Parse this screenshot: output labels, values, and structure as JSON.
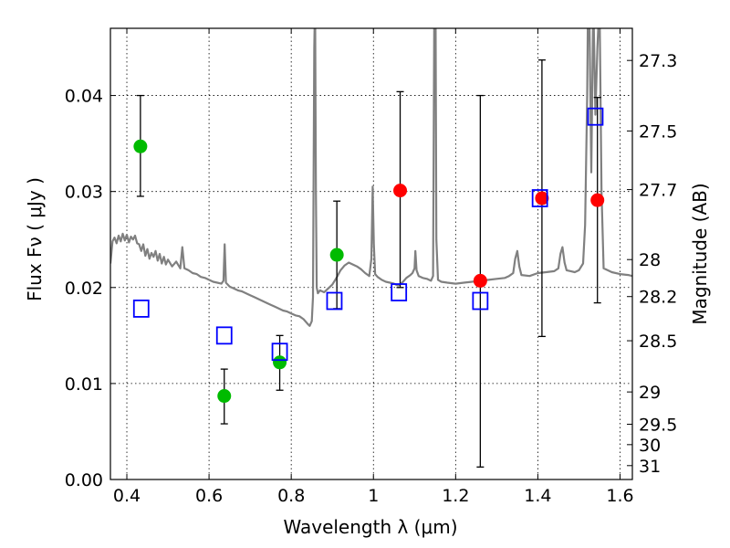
{
  "chart_data": {
    "type": "scatter",
    "xlabel": "Wavelength  λ (μm)",
    "ylabel_left": "Flux  Fν  ( μJy )",
    "ylabel_right": "Magnitude (AB)",
    "xlim": [
      0.36,
      1.63
    ],
    "ylim": [
      0.0,
      0.047
    ],
    "grid": true,
    "x_ticks": [
      {
        "value": 0.4,
        "label": "0.4"
      },
      {
        "value": 0.6,
        "label": "0.6"
      },
      {
        "value": 0.8,
        "label": "0.8"
      },
      {
        "value": 1.0,
        "label": "1"
      },
      {
        "value": 1.2,
        "label": "1.2"
      },
      {
        "value": 1.4,
        "label": "1.4"
      },
      {
        "value": 1.6,
        "label": "1.6"
      }
    ],
    "y_ticks": [
      {
        "value": 0.0,
        "label": "0.00"
      },
      {
        "value": 0.01,
        "label": "0.01"
      },
      {
        "value": 0.02,
        "label": "0.02"
      },
      {
        "value": 0.03,
        "label": "0.03"
      },
      {
        "value": 0.04,
        "label": "0.04"
      }
    ],
    "mag_ticks": [
      {
        "value": 27.3,
        "label": "27.3"
      },
      {
        "value": 27.5,
        "label": "27.5"
      },
      {
        "value": 27.7,
        "label": "27.7"
      },
      {
        "value": 28.0,
        "label": "28"
      },
      {
        "value": 28.2,
        "label": "28.2"
      },
      {
        "value": 28.5,
        "label": "28.5"
      },
      {
        "value": 29.0,
        "label": "29"
      },
      {
        "value": 29.5,
        "label": "29.5"
      },
      {
        "value": 30.0,
        "label": "30"
      },
      {
        "value": 31.0,
        "label": "31"
      }
    ],
    "series": [
      {
        "name": "model SED",
        "kind": "line",
        "color": "#808080",
        "points": [
          [
            0.36,
            0.0225
          ],
          [
            0.365,
            0.0248
          ],
          [
            0.37,
            0.0252
          ],
          [
            0.375,
            0.0246
          ],
          [
            0.38,
            0.0254
          ],
          [
            0.385,
            0.0248
          ],
          [
            0.39,
            0.0256
          ],
          [
            0.395,
            0.0249
          ],
          [
            0.4,
            0.0255
          ],
          [
            0.405,
            0.0247
          ],
          [
            0.41,
            0.0253
          ],
          [
            0.415,
            0.025
          ],
          [
            0.42,
            0.0254
          ],
          [
            0.425,
            0.0246
          ],
          [
            0.43,
            0.0245
          ],
          [
            0.435,
            0.0238
          ],
          [
            0.44,
            0.0245
          ],
          [
            0.445,
            0.0233
          ],
          [
            0.45,
            0.024
          ],
          [
            0.455,
            0.023
          ],
          [
            0.46,
            0.0236
          ],
          [
            0.465,
            0.0232
          ],
          [
            0.47,
            0.0238
          ],
          [
            0.475,
            0.0228
          ],
          [
            0.48,
            0.0235
          ],
          [
            0.485,
            0.0225
          ],
          [
            0.49,
            0.0232
          ],
          [
            0.495,
            0.0224
          ],
          [
            0.5,
            0.0229
          ],
          [
            0.51,
            0.0222
          ],
          [
            0.52,
            0.0227
          ],
          [
            0.53,
            0.022
          ],
          [
            0.535,
            0.0242
          ],
          [
            0.54,
            0.022
          ],
          [
            0.55,
            0.0218
          ],
          [
            0.56,
            0.0215
          ],
          [
            0.57,
            0.0214
          ],
          [
            0.58,
            0.0211
          ],
          [
            0.59,
            0.021
          ],
          [
            0.6,
            0.0208
          ],
          [
            0.61,
            0.0206
          ],
          [
            0.62,
            0.0205
          ],
          [
            0.63,
            0.0204
          ],
          [
            0.635,
            0.0207
          ],
          [
            0.638,
            0.0245
          ],
          [
            0.641,
            0.0205
          ],
          [
            0.65,
            0.0201
          ],
          [
            0.66,
            0.0199
          ],
          [
            0.67,
            0.0197
          ],
          [
            0.68,
            0.0196
          ],
          [
            0.69,
            0.0194
          ],
          [
            0.7,
            0.0192
          ],
          [
            0.71,
            0.019
          ],
          [
            0.72,
            0.0188
          ],
          [
            0.73,
            0.0186
          ],
          [
            0.74,
            0.0184
          ],
          [
            0.75,
            0.0182
          ],
          [
            0.76,
            0.018
          ],
          [
            0.77,
            0.0178
          ],
          [
            0.78,
            0.0176
          ],
          [
            0.79,
            0.0175
          ],
          [
            0.8,
            0.0173
          ],
          [
            0.81,
            0.0171
          ],
          [
            0.82,
            0.017
          ],
          [
            0.83,
            0.0167
          ],
          [
            0.84,
            0.0162
          ],
          [
            0.845,
            0.016
          ],
          [
            0.85,
            0.0165
          ],
          [
            0.853,
            0.019
          ],
          [
            0.856,
            0.045
          ],
          [
            0.858,
            0.05
          ],
          [
            0.86,
            0.03
          ],
          [
            0.862,
            0.02
          ],
          [
            0.865,
            0.0194
          ],
          [
            0.87,
            0.0197
          ],
          [
            0.88,
            0.0195
          ],
          [
            0.89,
            0.0199
          ],
          [
            0.9,
            0.0203
          ],
          [
            0.91,
            0.021
          ],
          [
            0.92,
            0.0218
          ],
          [
            0.93,
            0.0223
          ],
          [
            0.94,
            0.0226
          ],
          [
            0.95,
            0.0224
          ],
          [
            0.96,
            0.0222
          ],
          [
            0.97,
            0.0219
          ],
          [
            0.98,
            0.0215
          ],
          [
            0.99,
            0.0212
          ],
          [
            0.995,
            0.023
          ],
          [
            0.998,
            0.0305
          ],
          [
            1.001,
            0.0245
          ],
          [
            1.004,
            0.0214
          ],
          [
            1.01,
            0.0211
          ],
          [
            1.02,
            0.0208
          ],
          [
            1.03,
            0.0206
          ],
          [
            1.04,
            0.0205
          ],
          [
            1.05,
            0.0204
          ],
          [
            1.06,
            0.0202
          ],
          [
            1.07,
            0.0205
          ],
          [
            1.08,
            0.021
          ],
          [
            1.09,
            0.0213
          ],
          [
            1.095,
            0.0215
          ],
          [
            1.1,
            0.022
          ],
          [
            1.102,
            0.0238
          ],
          [
            1.105,
            0.0218
          ],
          [
            1.11,
            0.0212
          ],
          [
            1.12,
            0.021
          ],
          [
            1.13,
            0.0209
          ],
          [
            1.14,
            0.0207
          ],
          [
            1.145,
            0.0212
          ],
          [
            1.148,
            0.048
          ],
          [
            1.151,
            0.05
          ],
          [
            1.153,
            0.025
          ],
          [
            1.157,
            0.0208
          ],
          [
            1.165,
            0.0206
          ],
          [
            1.18,
            0.0205
          ],
          [
            1.2,
            0.0204
          ],
          [
            1.22,
            0.0205
          ],
          [
            1.24,
            0.0206
          ],
          [
            1.26,
            0.0207
          ],
          [
            1.28,
            0.0208
          ],
          [
            1.3,
            0.0209
          ],
          [
            1.32,
            0.021
          ],
          [
            1.33,
            0.0212
          ],
          [
            1.34,
            0.0215
          ],
          [
            1.345,
            0.023
          ],
          [
            1.35,
            0.0238
          ],
          [
            1.355,
            0.0222
          ],
          [
            1.36,
            0.0213
          ],
          [
            1.38,
            0.0212
          ],
          [
            1.4,
            0.0215
          ],
          [
            1.42,
            0.0216
          ],
          [
            1.44,
            0.0217
          ],
          [
            1.45,
            0.022
          ],
          [
            1.455,
            0.0235
          ],
          [
            1.46,
            0.0242
          ],
          [
            1.465,
            0.0226
          ],
          [
            1.47,
            0.0218
          ],
          [
            1.48,
            0.0217
          ],
          [
            1.49,
            0.0216
          ],
          [
            1.5,
            0.0218
          ],
          [
            1.51,
            0.0225
          ],
          [
            1.515,
            0.0265
          ],
          [
            1.52,
            0.04
          ],
          [
            1.522,
            0.05
          ],
          [
            1.525,
            0.05
          ],
          [
            1.53,
            0.032
          ],
          [
            1.535,
            0.05
          ],
          [
            1.54,
            0.038
          ],
          [
            1.545,
            0.045
          ],
          [
            1.55,
            0.05
          ],
          [
            1.555,
            0.03
          ],
          [
            1.56,
            0.022
          ],
          [
            1.57,
            0.0218
          ],
          [
            1.58,
            0.0216
          ],
          [
            1.6,
            0.0214
          ],
          [
            1.62,
            0.0213
          ],
          [
            1.63,
            0.0212
          ]
        ]
      },
      {
        "name": "green detections",
        "kind": "points",
        "marker": "circle",
        "color": "#00bb00",
        "points": [
          {
            "x": 0.433,
            "y": 0.0347,
            "lo": 0.0295,
            "hi": 0.04
          },
          {
            "x": 0.637,
            "y": 0.0087,
            "lo": 0.0058,
            "hi": 0.0115
          },
          {
            "x": 0.772,
            "y": 0.0122,
            "lo": 0.0093,
            "hi": 0.015
          },
          {
            "x": 0.911,
            "y": 0.0234,
            "lo": 0.0178,
            "hi": 0.029
          }
        ]
      },
      {
        "name": "red detections",
        "kind": "points",
        "marker": "circle",
        "color": "#ff0000",
        "points": [
          {
            "x": 1.065,
            "y": 0.0301,
            "lo": 0.02,
            "hi": 0.0404
          },
          {
            "x": 1.26,
            "y": 0.0207,
            "lo": 0.0013,
            "hi": 0.04
          },
          {
            "x": 1.41,
            "y": 0.0293,
            "lo": 0.0149,
            "hi": 0.0437
          },
          {
            "x": 1.545,
            "y": 0.0291,
            "lo": 0.0184,
            "hi": 0.0398
          }
        ]
      },
      {
        "name": "model photometry",
        "kind": "points",
        "marker": "square",
        "color": "#0000ff",
        "points": [
          {
            "x": 0.435,
            "y": 0.0178
          },
          {
            "x": 0.637,
            "y": 0.015
          },
          {
            "x": 0.772,
            "y": 0.0133
          },
          {
            "x": 0.905,
            "y": 0.0186
          },
          {
            "x": 1.062,
            "y": 0.0195
          },
          {
            "x": 1.26,
            "y": 0.0186
          },
          {
            "x": 1.405,
            "y": 0.0293
          },
          {
            "x": 1.54,
            "y": 0.0378
          }
        ]
      }
    ]
  }
}
